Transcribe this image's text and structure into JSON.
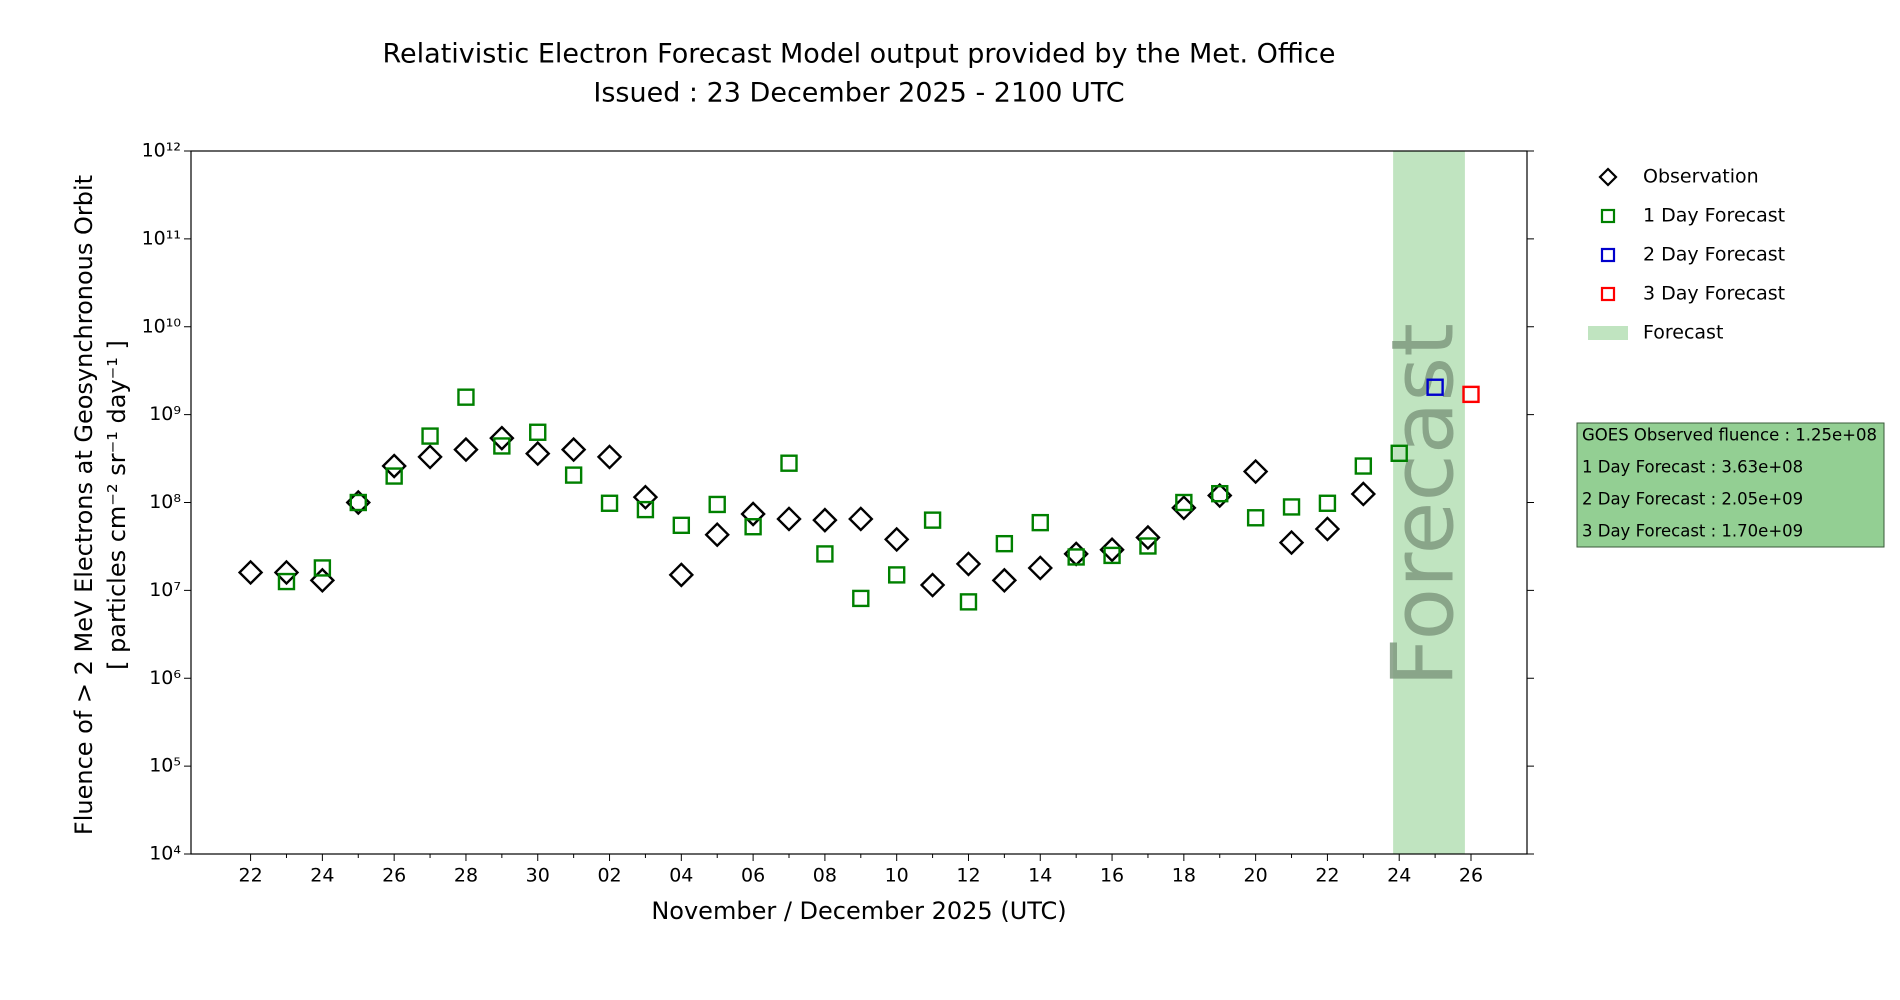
{
  "chart_data": {
    "type": "scatter",
    "title": [
      "Relativistic Electron Forecast Model output provided by the Met. Office",
      "Issued : 23 December 2025 - 2100 UTC"
    ],
    "x_label": "November / December 2025 (UTC)",
    "y_label": [
      "Fluence of > 2 MeV Electrons at Geosynchronous Orbit",
      "[ particles cm⁻² sr⁻¹ day⁻¹ ]"
    ],
    "yscale": "log",
    "ylim": [
      10000,
      1000000000000
    ],
    "yticks": [
      {
        "value": 10000,
        "label": "10⁴"
      },
      {
        "value": 100000,
        "label": "10⁵"
      },
      {
        "value": 1000000,
        "label": "10⁶"
      },
      {
        "value": 10000000,
        "label": "10⁷"
      },
      {
        "value": 100000000,
        "label": "10⁸"
      },
      {
        "value": 1000000000,
        "label": "10⁹"
      },
      {
        "value": 10000000000,
        "label": "10¹⁰"
      },
      {
        "value": 100000000000,
        "label": "10¹¹"
      },
      {
        "value": 1000000000000,
        "label": "10¹²"
      }
    ],
    "categories": [
      "22",
      null,
      "24",
      null,
      "26",
      null,
      "28",
      null,
      "30",
      null,
      "02",
      null,
      "04",
      null,
      "06",
      null,
      "08",
      null,
      "10",
      null,
      "12",
      null,
      "14",
      null,
      "16",
      null,
      "18",
      null,
      "20",
      null,
      "22",
      null,
      "24",
      null,
      "26"
    ],
    "series": [
      {
        "name": "Observation",
        "color": "#000000",
        "marker": "diamond",
        "values": [
          16000000,
          16000000,
          13000000,
          100000000,
          260000000,
          330000000,
          400000000,
          540000000,
          360000000,
          400000000,
          330000000,
          115000000,
          15000000,
          43000000,
          74000000,
          65000000,
          63000000,
          65000000,
          38000000,
          11500000,
          20000000,
          13000000,
          18000000,
          26000000,
          29000000,
          40000000,
          87000000,
          120000000,
          225000000,
          35000000,
          50000000,
          125000000,
          null,
          null,
          null
        ]
      },
      {
        "name": "1 Day Forecast",
        "color": "#008000",
        "marker": "square",
        "values": [
          null,
          12600000,
          18000000,
          100000000,
          200000000,
          570000000,
          1580000000,
          440000000,
          630000000,
          205000000,
          98000000,
          83000000,
          55000000,
          95000000,
          53000000,
          280000000,
          26000000,
          8100000,
          15000000,
          63000000,
          7400000,
          34000000,
          59000000,
          24000000,
          25000000,
          32000000,
          100000000,
          126000000,
          67000000,
          89000000,
          98000000,
          260000000,
          363000000,
          null,
          null
        ]
      },
      {
        "name": "2 Day Forecast",
        "color": "#0000cc",
        "marker": "square",
        "values": [
          null,
          null,
          null,
          null,
          null,
          null,
          null,
          null,
          null,
          null,
          null,
          null,
          null,
          null,
          null,
          null,
          null,
          null,
          null,
          null,
          null,
          null,
          null,
          null,
          null,
          null,
          null,
          null,
          null,
          null,
          null,
          null,
          null,
          2050000000,
          null
        ]
      },
      {
        "name": "3 Day Forecast",
        "color": "#ff0000",
        "marker": "square",
        "values": [
          null,
          null,
          null,
          null,
          null,
          null,
          null,
          null,
          null,
          null,
          null,
          null,
          null,
          null,
          null,
          null,
          null,
          null,
          null,
          null,
          null,
          null,
          null,
          null,
          null,
          null,
          null,
          null,
          null,
          null,
          null,
          null,
          null,
          null,
          1700000000
        ]
      }
    ],
    "forecast_band": {
      "label": "Forecast",
      "text": "Forecast",
      "color": "#c0e4c0"
    },
    "info_box": {
      "color": "#93cf93",
      "lines": [
        "GOES Observed fluence : 1.25e+08",
        "1 Day Forecast : 3.63e+08",
        "2 Day Forecast : 2.05e+09",
        "3 Day Forecast : 1.70e+09"
      ]
    },
    "legend": "right"
  }
}
